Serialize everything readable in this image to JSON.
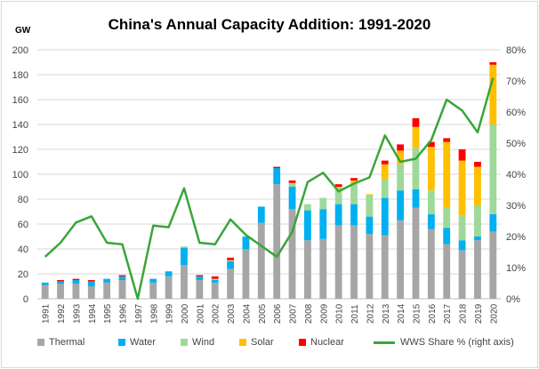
{
  "chart_data": {
    "type": "bar",
    "stacked": true,
    "title": "China's Annual Capacity Addition: 1991-2020",
    "ylabel": "GW",
    "ylim": [
      0,
      200
    ],
    "y2lim": [
      0,
      80
    ],
    "grid": true,
    "legend_position": "bottom",
    "yticks": [
      "0",
      "20",
      "40",
      "60",
      "80",
      "100",
      "120",
      "140",
      "160",
      "180",
      "200"
    ],
    "y2ticks": [
      "0%",
      "10%",
      "20%",
      "30%",
      "40%",
      "50%",
      "60%",
      "70%",
      "80%"
    ],
    "categories": [
      "1991",
      "1992",
      "1993",
      "1994",
      "1995",
      "1996",
      "1997",
      "1998",
      "1999",
      "2000",
      "2001",
      "2002",
      "2003",
      "2004",
      "2005",
      "2006",
      "2007",
      "2008",
      "2009",
      "2010",
      "2011",
      "2012",
      "2013",
      "2014",
      "2015",
      "2016",
      "2017",
      "2018",
      "2019",
      "2020"
    ],
    "series": [
      {
        "name": "Thermal",
        "color": "#a6a6a6",
        "values": [
          11,
          12,
          12,
          10,
          13,
          15,
          0,
          13,
          18,
          27,
          15,
          13,
          24,
          40,
          61,
          92,
          72,
          47,
          48,
          59,
          59,
          52,
          51,
          63,
          73,
          56,
          44,
          39,
          47,
          54
        ]
      },
      {
        "name": "Water",
        "color": "#00b0f0",
        "values": [
          2,
          2,
          3,
          4,
          3,
          3,
          0,
          3,
          4,
          14,
          3,
          2,
          6,
          10,
          13,
          13,
          18,
          24,
          24,
          17,
          17,
          14,
          30,
          24,
          15,
          12,
          13,
          8,
          3,
          14
        ]
      },
      {
        "name": "Wind",
        "color": "#9fd99a",
        "values": [
          0,
          0,
          0,
          0,
          0,
          0,
          0,
          0,
          0,
          1,
          0,
          1,
          1,
          0,
          0,
          0,
          3,
          5,
          9,
          13,
          17,
          17,
          15,
          21,
          33,
          19,
          16,
          20,
          25,
          72
        ]
      },
      {
        "name": "Solar",
        "color": "#ffc000",
        "values": [
          0,
          0,
          0,
          0,
          0,
          0,
          0,
          0,
          0,
          0,
          0,
          0,
          0,
          0,
          0,
          0,
          0,
          0,
          0,
          1,
          2,
          1,
          12,
          11,
          17,
          35,
          53,
          44,
          31,
          48
        ]
      },
      {
        "name": "Nuclear",
        "color": "#ff0000",
        "values": [
          0,
          1,
          1,
          1,
          0,
          1,
          0,
          0,
          0,
          0,
          1,
          2,
          2,
          0,
          0,
          1,
          2,
          0,
          0,
          2,
          2,
          0,
          3,
          5,
          7,
          4,
          3,
          9,
          4,
          2
        ]
      }
    ],
    "line_series": {
      "name": "WWS Share % (right axis)",
      "color": "#3aa53a",
      "axis": "right",
      "values": [
        13.5,
        18,
        24.5,
        26.5,
        18,
        17.5,
        0,
        23.5,
        23,
        35.5,
        18,
        17.5,
        25.5,
        20.5,
        17,
        13.5,
        21.5,
        37.5,
        40.5,
        34.5,
        37,
        39,
        52.5,
        44,
        45,
        51,
        64,
        60.5,
        53.5,
        71
      ]
    }
  }
}
